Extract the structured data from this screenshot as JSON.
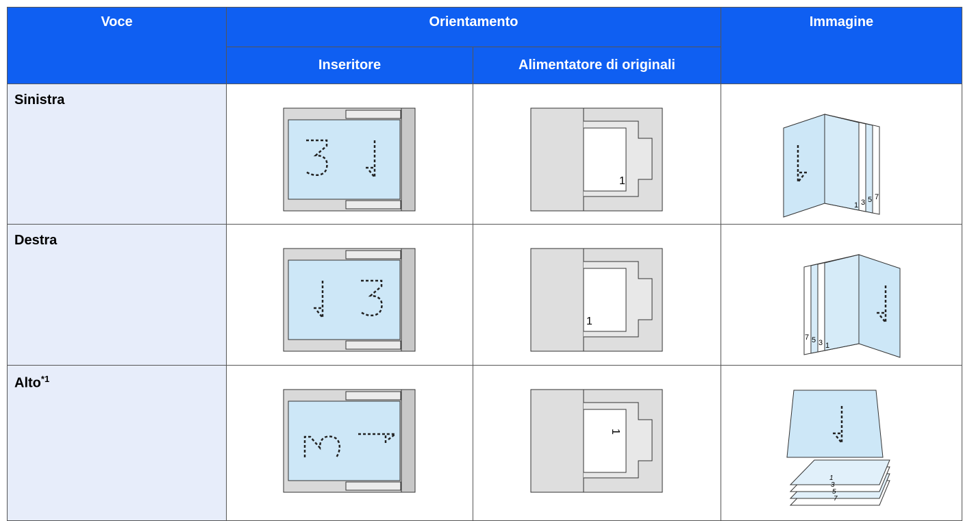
{
  "header": {
    "voce": "Voce",
    "orientamento": "Orientamento",
    "immagine": "Immagine",
    "inseritore": "Inseritore",
    "alimentatore": "Alimentatore di originali"
  },
  "rows": [
    {
      "voce": "Sinistra"
    },
    {
      "voce": "Destra"
    },
    {
      "voce": "Alto",
      "note": "*1"
    }
  ],
  "illustration_labels": {
    "adf_page": "1",
    "book_pages": [
      "1",
      "3",
      "5",
      "7"
    ]
  }
}
